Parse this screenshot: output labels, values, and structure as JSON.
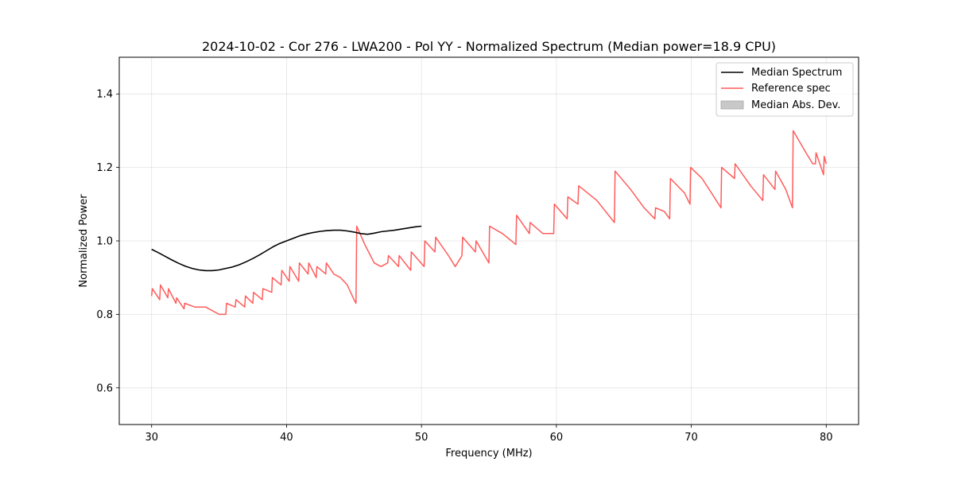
{
  "chart_data": {
    "type": "line",
    "title": "2024-10-02 - Cor 276 - LWA200 - Pol YY - Normalized Spectrum (Median power=18.9 CPU)",
    "xlabel": "Frequency (MHz)",
    "ylabel": "Normalized Power",
    "xlim": [
      27.6,
      82.4
    ],
    "ylim": [
      0.5,
      1.5
    ],
    "xticks": [
      30,
      40,
      50,
      60,
      70,
      80
    ],
    "xtick_labels": [
      "30",
      "40",
      "50",
      "60",
      "70",
      "80"
    ],
    "yticks": [
      0.6,
      0.8,
      1.0,
      1.2,
      1.4
    ],
    "ytick_labels": [
      "0.6",
      "0.8",
      "1.0",
      "1.2",
      "1.4"
    ],
    "grid": true,
    "legend_position": "top-right",
    "legend": [
      {
        "label": "Median Spectrum",
        "kind": "line",
        "color": "#000000"
      },
      {
        "label": "Reference spec",
        "kind": "line",
        "color": "#ff5c5c"
      },
      {
        "label": "Median Abs. Dev.",
        "kind": "patch",
        "color": "#c8c8c8"
      }
    ],
    "series": [
      {
        "name": "Median Spectrum",
        "color": "#000000",
        "x": [
          30.0,
          30.5,
          31.0,
          31.5,
          32.0,
          32.5,
          33.0,
          33.5,
          34.0,
          34.5,
          35.0,
          35.5,
          36.0,
          36.5,
          37.0,
          37.5,
          38.0,
          38.5,
          39.0,
          39.5,
          40.0,
          40.5,
          41.0,
          41.5,
          42.0,
          42.5,
          43.0,
          43.5,
          44.0,
          44.5,
          45.0,
          45.5,
          46.0,
          46.5,
          47.0,
          47.5,
          48.0,
          48.5,
          49.0,
          49.5,
          50.0
        ],
        "y": [
          0.977,
          0.968,
          0.958,
          0.948,
          0.939,
          0.931,
          0.925,
          0.921,
          0.919,
          0.919,
          0.921,
          0.925,
          0.929,
          0.935,
          0.943,
          0.952,
          0.962,
          0.973,
          0.984,
          0.993,
          1.0,
          1.007,
          1.014,
          1.019,
          1.023,
          1.026,
          1.028,
          1.029,
          1.029,
          1.027,
          1.024,
          1.02,
          1.018,
          1.021,
          1.025,
          1.027,
          1.029,
          1.032,
          1.035,
          1.038,
          1.04
        ]
      },
      {
        "name": "Reference spec",
        "color": "#ff5c5c",
        "x": [
          30.0,
          30.05,
          30.6,
          30.65,
          31.2,
          31.25,
          31.8,
          31.85,
          32.4,
          32.45,
          33.2,
          34.0,
          34.5,
          35.0,
          35.5,
          35.55,
          36.2,
          36.25,
          36.9,
          36.95,
          37.5,
          37.55,
          38.2,
          38.25,
          38.9,
          38.95,
          39.6,
          39.65,
          40.2,
          40.25,
          40.9,
          40.95,
          41.6,
          41.65,
          42.2,
          42.25,
          42.9,
          42.95,
          43.5,
          44.0,
          44.5,
          45.0,
          45.15,
          45.2,
          45.8,
          46.5,
          47.0,
          47.5,
          47.55,
          48.3,
          48.35,
          49.2,
          49.25,
          50.2,
          50.25,
          51.0,
          51.05,
          52.0,
          52.5,
          53.0,
          53.05,
          54.0,
          54.05,
          55.0,
          55.05,
          56.0,
          57.0,
          57.05,
          58.0,
          58.05,
          59.0,
          59.8,
          59.85,
          60.8,
          60.85,
          61.6,
          61.65,
          63.0,
          64.3,
          64.35,
          65.5,
          66.5,
          67.3,
          67.35,
          68.0,
          68.4,
          68.45,
          69.5,
          69.9,
          69.95,
          70.8,
          71.5,
          72.2,
          72.25,
          73.2,
          73.25,
          74.4,
          75.3,
          75.35,
          76.2,
          76.25,
          77.0,
          77.5,
          77.55,
          78.5,
          79.0,
          79.2,
          79.25,
          79.8,
          79.85,
          80.0
        ],
        "y": [
          0.85,
          0.87,
          0.84,
          0.88,
          0.845,
          0.87,
          0.83,
          0.845,
          0.815,
          0.83,
          0.82,
          0.82,
          0.81,
          0.8,
          0.8,
          0.83,
          0.82,
          0.84,
          0.82,
          0.85,
          0.83,
          0.86,
          0.84,
          0.87,
          0.86,
          0.9,
          0.88,
          0.92,
          0.89,
          0.93,
          0.89,
          0.94,
          0.91,
          0.94,
          0.9,
          0.93,
          0.91,
          0.94,
          0.91,
          0.9,
          0.88,
          0.84,
          0.83,
          1.04,
          0.99,
          0.94,
          0.93,
          0.94,
          0.96,
          0.93,
          0.96,
          0.92,
          0.97,
          0.93,
          1.0,
          0.97,
          1.01,
          0.96,
          0.93,
          0.96,
          1.01,
          0.97,
          1.0,
          0.94,
          1.04,
          1.02,
          0.99,
          1.07,
          1.02,
          1.05,
          1.02,
          1.02,
          1.1,
          1.06,
          1.12,
          1.1,
          1.15,
          1.11,
          1.05,
          1.19,
          1.14,
          1.09,
          1.06,
          1.09,
          1.08,
          1.06,
          1.17,
          1.13,
          1.1,
          1.2,
          1.17,
          1.13,
          1.09,
          1.2,
          1.17,
          1.21,
          1.15,
          1.11,
          1.18,
          1.14,
          1.19,
          1.14,
          1.09,
          1.3,
          1.24,
          1.21,
          1.21,
          1.24,
          1.18,
          1.23,
          1.21
        ]
      }
    ]
  }
}
